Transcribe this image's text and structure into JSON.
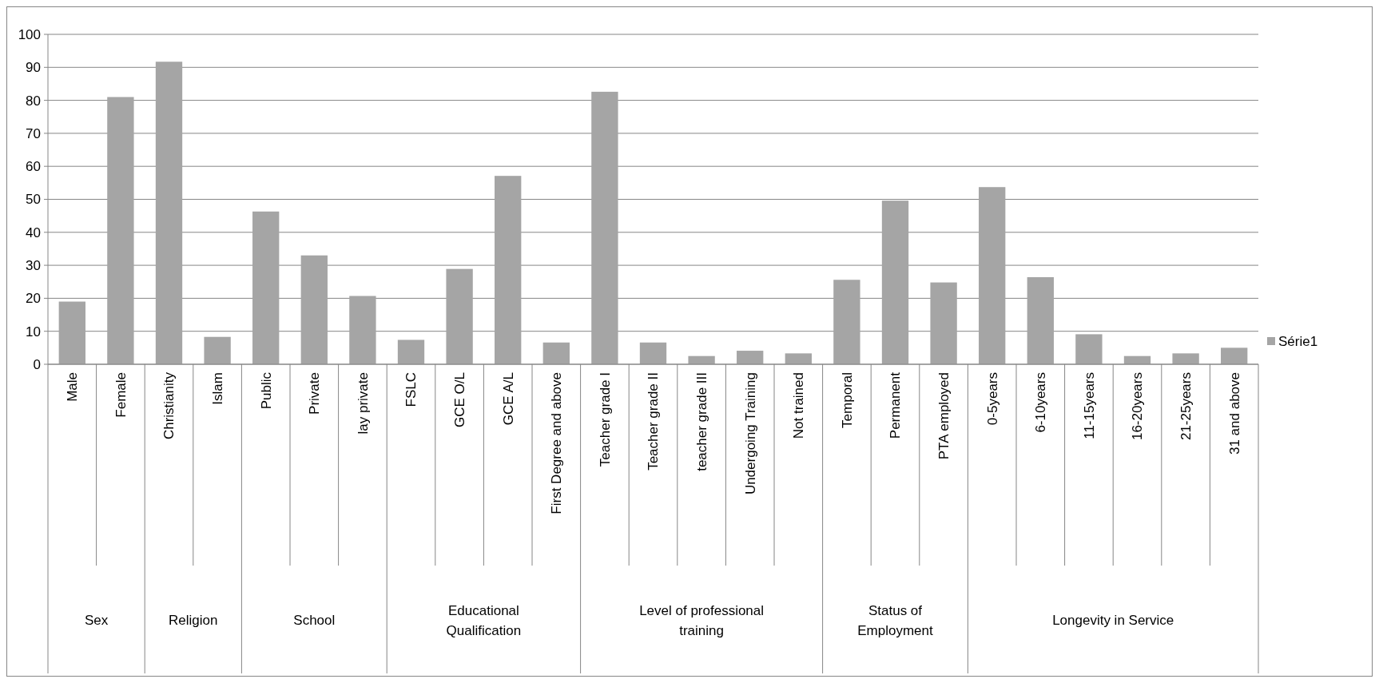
{
  "chart_data": {
    "type": "bar",
    "categories": [
      "Male",
      "Female",
      "Christianity",
      "Islam",
      "Public",
      "Private",
      "lay private",
      "FSLC",
      "GCE O/L",
      "GCE A/L",
      "First Degree and above",
      "Teacher grade I",
      "Teacher grade II",
      "teacher grade III",
      "Undergoing Training",
      "Not trained",
      "Temporal",
      "Permanent",
      "PTA employed",
      "0-5years",
      "6-10years",
      "11-15years",
      "16-20years",
      "21-25years",
      "31 and above"
    ],
    "series": [
      {
        "name": "Série1",
        "color": "#a5a5a5",
        "values": [
          19,
          81,
          91.7,
          8.3,
          46.3,
          33,
          20.7,
          7.4,
          28.9,
          57.1,
          6.6,
          82.6,
          6.6,
          2.5,
          4.1,
          3.3,
          25.6,
          49.6,
          24.8,
          53.7,
          26.4,
          9.1,
          2.5,
          3.3,
          5
        ]
      }
    ],
    "ylim": [
      0,
      100
    ],
    "yticks": [
      0,
      10,
      20,
      30,
      40,
      50,
      60,
      70,
      80,
      90,
      100
    ],
    "grid": "y",
    "legend": "right",
    "annotations": [
      "Sex",
      "Religion",
      "School",
      "Educational Qualification",
      "Level of professional training",
      "Status of Employment",
      "Longevity in Service"
    ]
  }
}
